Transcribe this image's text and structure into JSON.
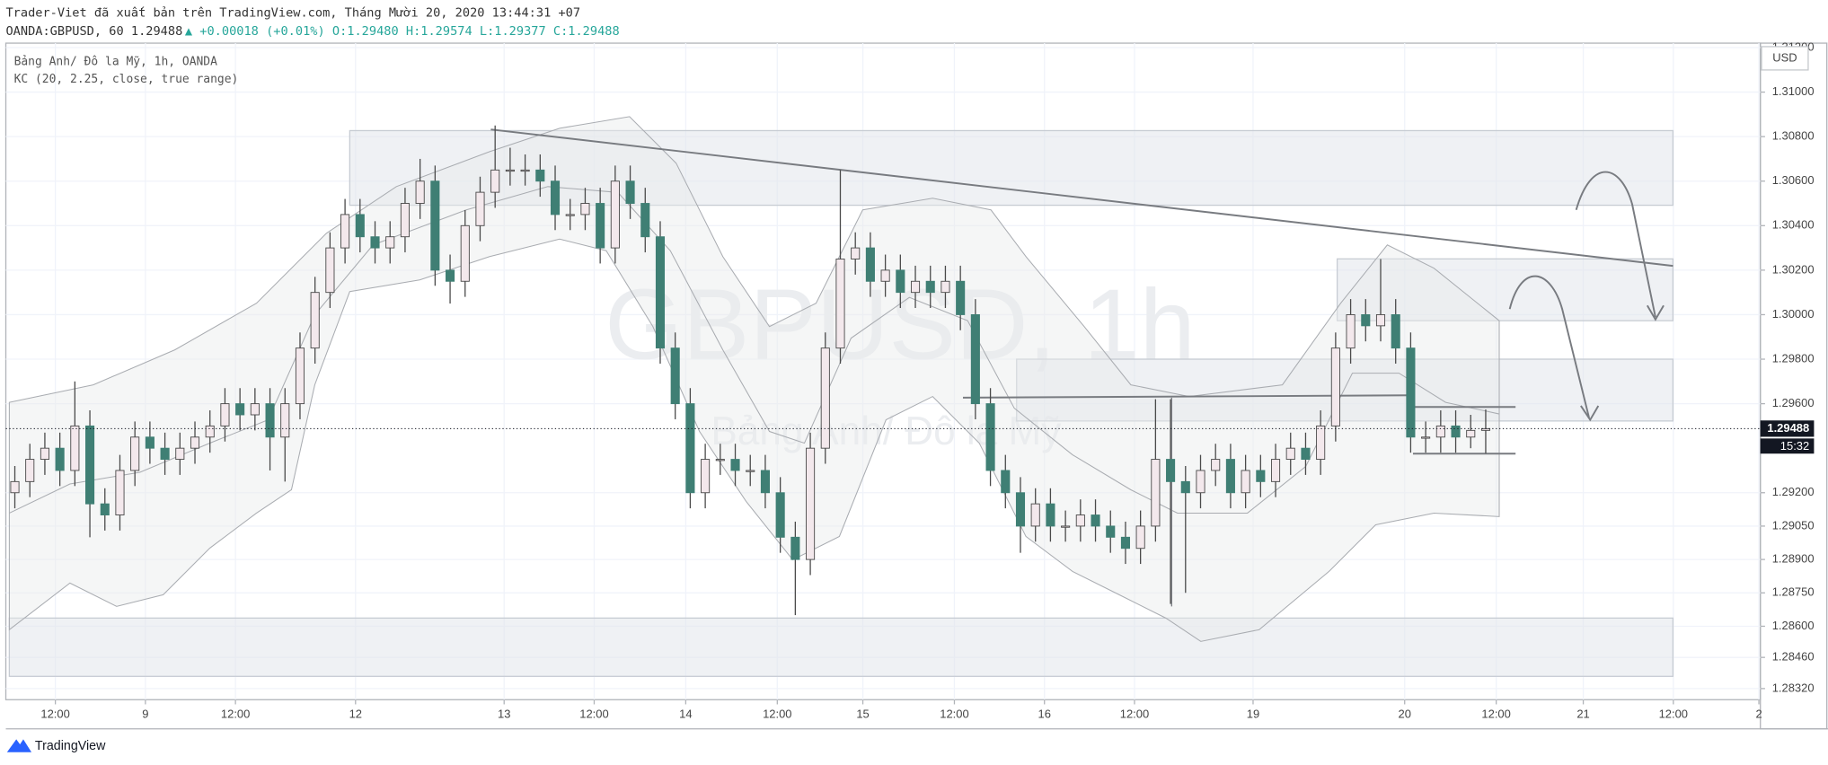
{
  "publisher_line": "Trader-Viet đã xuất bản trên TradingView.com, Tháng Mười 20, 2020 13:44:31 +07",
  "symbol_line": "OANDA:GBPUSD, 60",
  "header_price": "1.29488",
  "header_change": "▲ +0.00018 (+0.01%)",
  "ohlc": [
    "O:1.29480",
    "H:1.29574",
    "L:1.29377",
    "C:1.29488"
  ],
  "legend": [
    "Bảng Anh/ Đô la Mỹ, 1h, OANDA",
    "KC (20, 2.25, close, true range)"
  ],
  "watermark": [
    "GBPUSD, 1h",
    "Bảng Anh/ Đô la Mỹ"
  ],
  "currency": "USD",
  "countdown": "15:32",
  "brand": "TradingView",
  "chart_data": {
    "type": "candlestick",
    "up_color": "#f3e8ec",
    "down_color": "#3f7f74",
    "wick_color": "#4a4a4a",
    "xlim": [
      -0.6,
      116.3
    ],
    "ylim": [
      1.2827,
      1.3122
    ],
    "grid": true,
    "last_price": 1.29488,
    "xticks": [
      {
        "value": 2.7,
        "label": "12:00"
      },
      {
        "value": 8.7,
        "label": "9"
      },
      {
        "value": 14.7,
        "label": "12:00"
      },
      {
        "value": 22.7,
        "label": "12"
      },
      {
        "value": 32.6,
        "label": "13"
      },
      {
        "value": 38.6,
        "label": "12:00"
      },
      {
        "value": 44.7,
        "label": "14"
      },
      {
        "value": 50.8,
        "label": "12:00"
      },
      {
        "value": 56.5,
        "label": "15"
      },
      {
        "value": 62.6,
        "label": "12:00"
      },
      {
        "value": 68.6,
        "label": "16"
      },
      {
        "value": 74.6,
        "label": "12:00"
      },
      {
        "value": 82.5,
        "label": "19"
      },
      {
        "value": 92.6,
        "label": "20"
      },
      {
        "value": 98.7,
        "label": "12:00"
      },
      {
        "value": 104.5,
        "label": "21"
      },
      {
        "value": 110.5,
        "label": "12:00"
      },
      {
        "value": 116.2,
        "label": "2"
      }
    ],
    "yticks": [
      {
        "value": 1.312,
        "label": "1.31200"
      },
      {
        "value": 1.31,
        "label": "1.31000"
      },
      {
        "value": 1.308,
        "label": "1.30800"
      },
      {
        "value": 1.306,
        "label": "1.30600"
      },
      {
        "value": 1.304,
        "label": "1.30400"
      },
      {
        "value": 1.302,
        "label": "1.30200"
      },
      {
        "value": 1.3,
        "label": "1.30000"
      },
      {
        "value": 1.298,
        "label": "1.29800"
      },
      {
        "value": 1.296,
        "label": "1.29600"
      },
      {
        "value": 1.292,
        "label": "1.29200"
      },
      {
        "value": 1.2905,
        "label": "1.29050"
      },
      {
        "value": 1.289,
        "label": "1.28900"
      },
      {
        "value": 1.2875,
        "label": "1.28750"
      },
      {
        "value": 1.286,
        "label": "1.28600"
      },
      {
        "value": 1.2846,
        "label": "1.28460"
      },
      {
        "value": 1.2832,
        "label": "1.28320"
      }
    ],
    "open": [
      1.292,
      1.2925,
      1.2935,
      1.294,
      1.293,
      1.295,
      1.2915,
      1.291,
      1.293,
      1.2945,
      1.294,
      1.2935,
      1.294,
      1.2945,
      1.295,
      1.296,
      1.2955,
      1.296,
      1.2945,
      1.296,
      1.2985,
      1.301,
      1.303,
      1.3045,
      1.3035,
      1.303,
      1.3035,
      1.305,
      1.306,
      1.302,
      1.3015,
      1.304,
      1.3055,
      1.3065,
      1.3065,
      1.3065,
      1.306,
      1.3045,
      1.3045,
      1.305,
      1.303,
      1.306,
      1.305,
      1.3035,
      1.2985,
      1.296,
      1.292,
      1.2935,
      1.2935,
      1.293,
      1.293,
      1.292,
      1.29,
      1.289,
      1.294,
      1.2985,
      1.3025,
      1.303,
      1.3015,
      1.302,
      1.301,
      1.3015,
      1.301,
      1.3015,
      1.3,
      1.296,
      1.293,
      1.292,
      1.2905,
      1.2915,
      1.2905,
      1.2905,
      1.291,
      1.2905,
      1.29,
      1.2895,
      1.2905,
      1.2935,
      1.2925,
      1.292,
      1.293,
      1.2935,
      1.292,
      1.293,
      1.2925,
      1.2935,
      1.294,
      1.2935,
      1.295,
      1.2985,
      1.3,
      1.2995,
      1.3,
      1.2985,
      1.2945,
      1.2945,
      1.295,
      1.2945,
      1.2948
    ],
    "high": [
      1.2932,
      1.2942,
      1.2947,
      1.2947,
      1.297,
      1.2957,
      1.2922,
      1.2937,
      1.2952,
      1.2952,
      1.2947,
      1.2947,
      1.2952,
      1.2957,
      1.2967,
      1.2967,
      1.2967,
      1.2967,
      1.2967,
      1.2992,
      1.3017,
      1.3037,
      1.3052,
      1.3052,
      1.3042,
      1.3042,
      1.3057,
      1.307,
      1.3067,
      1.3027,
      1.3047,
      1.3062,
      1.3085,
      1.3075,
      1.3072,
      1.3072,
      1.3067,
      1.3052,
      1.3057,
      1.3057,
      1.3067,
      1.3067,
      1.3057,
      1.3042,
      1.2992,
      1.2967,
      1.2942,
      1.2942,
      1.2942,
      1.2937,
      1.2937,
      1.2927,
      1.2907,
      1.2947,
      1.2992,
      1.3065,
      1.3037,
      1.3037,
      1.3027,
      1.3027,
      1.3022,
      1.3022,
      1.3022,
      1.3022,
      1.3007,
      1.2967,
      1.2937,
      1.2927,
      1.2922,
      1.2922,
      1.2912,
      1.2917,
      1.2917,
      1.2912,
      1.2907,
      1.2912,
      1.2962,
      1.2962,
      1.2932,
      1.2937,
      1.2942,
      1.2942,
      1.2937,
      1.2937,
      1.2942,
      1.2947,
      1.2947,
      1.2957,
      1.2992,
      1.3007,
      1.3007,
      1.3025,
      1.3007,
      1.2992,
      1.2952,
      1.2957,
      1.2957,
      1.2955,
      1.29574
    ],
    "low": [
      1.2913,
      1.2918,
      1.2928,
      1.2923,
      1.2923,
      1.29,
      1.2903,
      1.2903,
      1.2923,
      1.2933,
      1.2928,
      1.2928,
      1.2933,
      1.2938,
      1.2943,
      1.2948,
      1.2948,
      1.293,
      1.2925,
      1.2953,
      1.2978,
      1.3003,
      1.3023,
      1.3028,
      1.3023,
      1.3023,
      1.3028,
      1.3043,
      1.3013,
      1.3005,
      1.3008,
      1.3033,
      1.3048,
      1.3058,
      1.3058,
      1.3053,
      1.3038,
      1.3038,
      1.3038,
      1.3023,
      1.3023,
      1.3043,
      1.3028,
      1.2978,
      1.2953,
      1.2913,
      1.2913,
      1.2928,
      1.2923,
      1.2923,
      1.2913,
      1.2893,
      1.2865,
      1.2883,
      1.2933,
      1.2978,
      1.3018,
      1.3008,
      1.3008,
      1.3003,
      1.3003,
      1.3003,
      1.3003,
      1.2993,
      1.2953,
      1.2923,
      1.2913,
      1.2893,
      1.2898,
      1.2898,
      1.2898,
      1.2898,
      1.2898,
      1.2893,
      1.2888,
      1.2888,
      1.2898,
      1.287,
      1.2875,
      1.2913,
      1.2923,
      1.2913,
      1.2913,
      1.2918,
      1.2918,
      1.2928,
      1.2928,
      1.2928,
      1.2943,
      1.2978,
      1.2988,
      1.2988,
      1.2978,
      1.2938,
      1.2938,
      1.2938,
      1.2938,
      1.294,
      1.29377
    ],
    "close": [
      1.2925,
      1.2935,
      1.294,
      1.293,
      1.295,
      1.2915,
      1.291,
      1.293,
      1.2945,
      1.294,
      1.2935,
      1.294,
      1.2945,
      1.295,
      1.296,
      1.2955,
      1.296,
      1.2945,
      1.296,
      1.2985,
      1.301,
      1.303,
      1.3045,
      1.3035,
      1.303,
      1.3035,
      1.305,
      1.306,
      1.302,
      1.3015,
      1.304,
      1.3055,
      1.3065,
      1.3065,
      1.3065,
      1.306,
      1.3045,
      1.3045,
      1.305,
      1.303,
      1.306,
      1.305,
      1.3035,
      1.2985,
      1.296,
      1.292,
      1.2935,
      1.2935,
      1.293,
      1.293,
      1.292,
      1.29,
      1.289,
      1.294,
      1.2985,
      1.3025,
      1.303,
      1.3015,
      1.302,
      1.301,
      1.3015,
      1.301,
      1.3015,
      1.3,
      1.296,
      1.293,
      1.292,
      1.2905,
      1.2915,
      1.2905,
      1.2905,
      1.291,
      1.2905,
      1.29,
      1.2895,
      1.2905,
      1.2935,
      1.2925,
      1.292,
      1.293,
      1.2935,
      1.292,
      1.293,
      1.2925,
      1.2935,
      1.294,
      1.2935,
      1.295,
      1.2985,
      1.3,
      1.2995,
      1.3,
      1.2985,
      1.2945,
      1.2945,
      1.295,
      1.2945,
      1.2948,
      1.29488
    ]
  }
}
